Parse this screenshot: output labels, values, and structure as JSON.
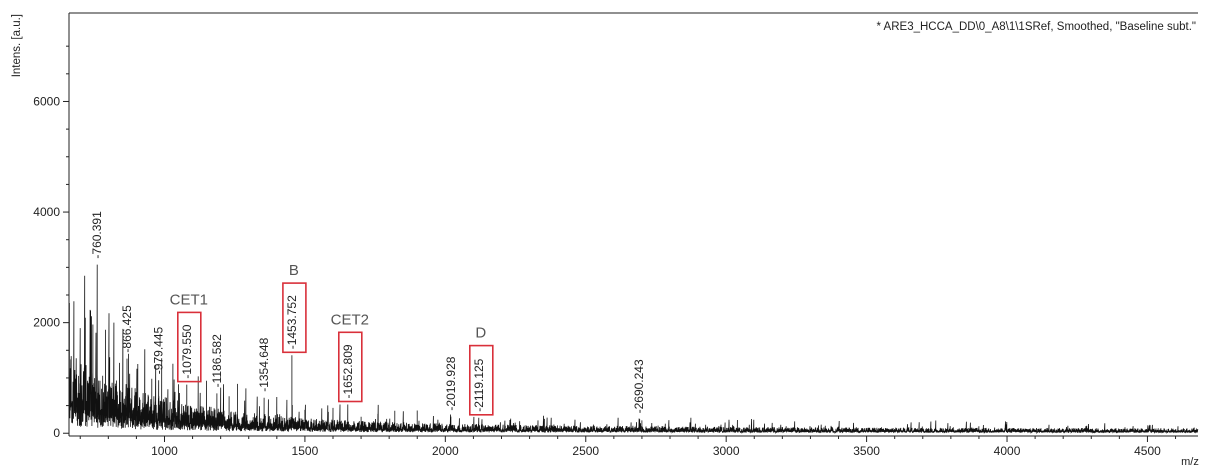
{
  "chart_data": {
    "type": "line",
    "title": "* ARE3_HCCA_DD\\0_A8\\1\\1SRef, Smoothed, \"Baseline subt.\"",
    "xlabel": "m/z",
    "ylabel": "Intens. [a.u.]",
    "xlim": [
      660,
      4680
    ],
    "ylim": [
      -50,
      7600
    ],
    "x_ticks": [
      1000,
      1500,
      2000,
      2500,
      3000,
      3500,
      4000,
      4500
    ],
    "y_ticks": [
      0,
      2000,
      4000,
      6000
    ],
    "grid": false,
    "line_color": "#111111",
    "highlight_color": "#d9303a",
    "peaks": [
      {
        "x": 760.391,
        "y": 3050,
        "label": "-760.391",
        "highlight": false
      },
      {
        "x": 866.425,
        "y": 1350,
        "label": "-866.425",
        "highlight": false
      },
      {
        "x": 979.445,
        "y": 960,
        "label": "-979.445",
        "highlight": false
      },
      {
        "x": 1079.55,
        "y": 880,
        "label": "-1079.550",
        "highlight": true,
        "group": "CET1"
      },
      {
        "x": 1186.582,
        "y": 720,
        "label": "-1186.582",
        "highlight": false
      },
      {
        "x": 1354.648,
        "y": 640,
        "label": "-1354.648",
        "highlight": false
      },
      {
        "x": 1453.752,
        "y": 1410,
        "label": "-1453.752",
        "highlight": true,
        "group": "B"
      },
      {
        "x": 1652.809,
        "y": 520,
        "label": "-1652.809",
        "highlight": true,
        "group": "CET2"
      },
      {
        "x": 2019.928,
        "y": 300,
        "label": "-2019.928",
        "highlight": false
      },
      {
        "x": 2119.125,
        "y": 280,
        "label": "-2119.125",
        "highlight": true,
        "group": "D"
      },
      {
        "x": 2690.243,
        "y": 250,
        "label": "-2690.243",
        "highlight": false
      }
    ],
    "annotations": [
      {
        "text": "CET1",
        "peak": 1079.55
      },
      {
        "text": "B",
        "peak": 1453.752
      },
      {
        "text": "CET2",
        "peak": 1652.809
      },
      {
        "text": "D",
        "peak": 2119.125
      }
    ]
  }
}
